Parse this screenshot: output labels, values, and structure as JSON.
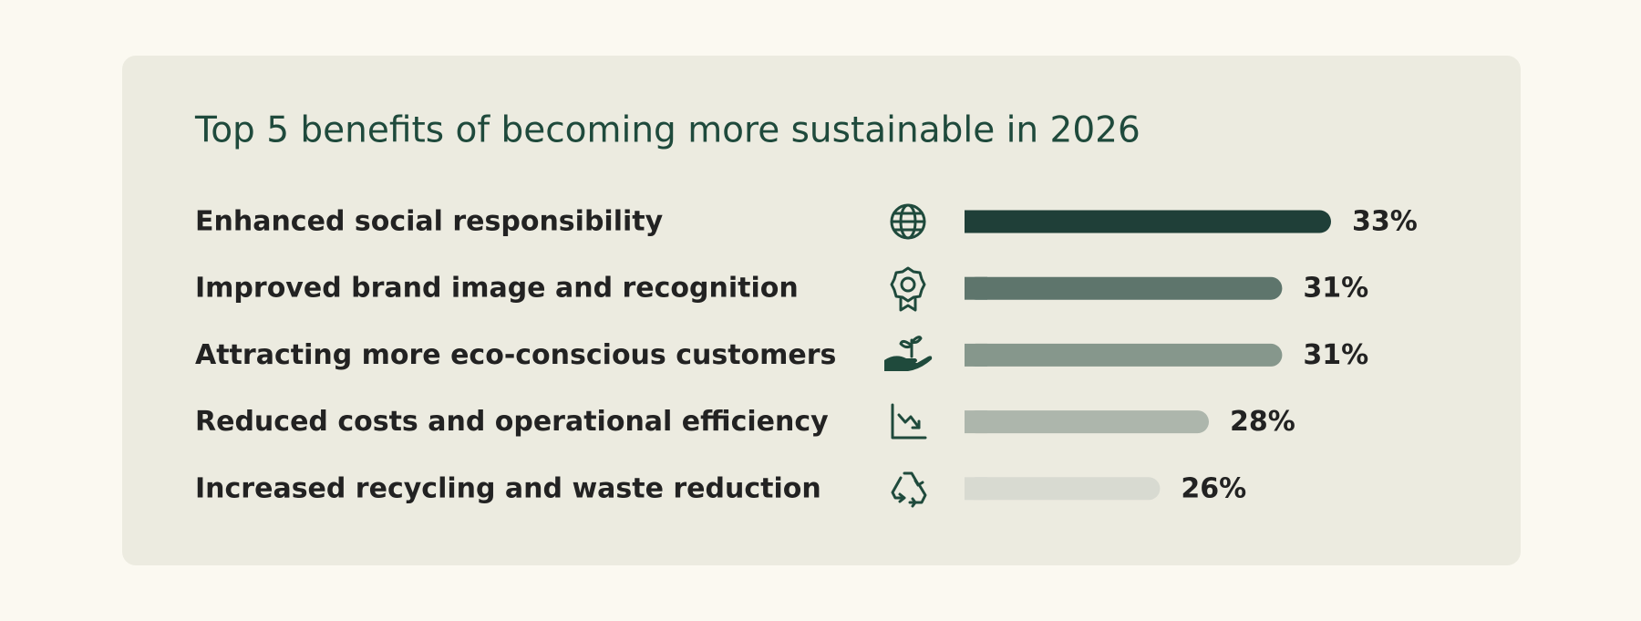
{
  "chart_data": {
    "type": "bar",
    "orientation": "horizontal",
    "title": "Top 5 benefits of becoming more sustainable in 2026",
    "categories": [
      "Enhanced social responsibility",
      "Improved brand image and recognition",
      "Attracting more eco-conscious customers",
      "Reduced costs and operational efficiency",
      "Increased recycling and waste reduction"
    ],
    "values": [
      33,
      31,
      31,
      28,
      26
    ],
    "value_labels": [
      "33%",
      "31%",
      "31%",
      "28%",
      "26%"
    ],
    "colors": [
      "#1f3f38",
      "#5e756c",
      "#86978c",
      "#adb6ac",
      "#d8dad1"
    ],
    "xlim": [
      18,
      33
    ]
  }
}
